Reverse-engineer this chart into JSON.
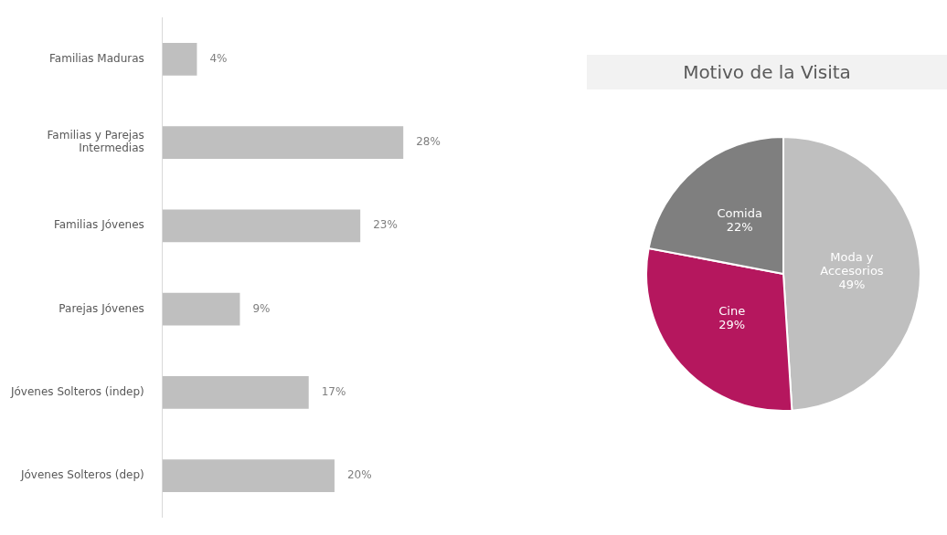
{
  "chart_data": [
    {
      "type": "bar",
      "orientation": "horizontal",
      "categories": [
        "Familias Maduras",
        "Familias y Parejas Intermedias",
        "Familias Jóvenes",
        "Parejas Jóvenes",
        "Jóvenes Solteros (indep)",
        "Jóvenes Solteros (dep)"
      ],
      "values": [
        4,
        28,
        23,
        9,
        17,
        20
      ],
      "value_labels": [
        "4%",
        "28%",
        "23%",
        "9%",
        "17%",
        "20%"
      ],
      "color": "#bfbfbf",
      "legend": false
    },
    {
      "type": "pie",
      "title": "Motivo de la Visita",
      "categories": [
        "Moda y Accesorios",
        "Cine",
        "Comida"
      ],
      "values": [
        49,
        29,
        22
      ],
      "value_labels": [
        "49%",
        "29%",
        "22%"
      ],
      "colors": [
        "#bfbfbf",
        "#b5175e",
        "#7f7f7f"
      ],
      "legend": false
    }
  ]
}
